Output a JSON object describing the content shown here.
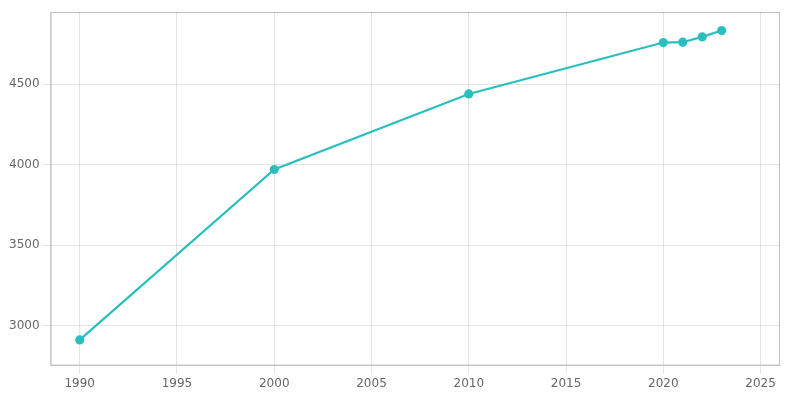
{
  "chart_data": {
    "type": "line",
    "x": [
      1990,
      2000,
      2010,
      2020,
      2021,
      2022,
      2023
    ],
    "values": [
      2910,
      3970,
      4440,
      4760,
      4762,
      4795,
      4835
    ],
    "color": "#2abfbf",
    "marker": "circle",
    "xlim": [
      1988.5,
      2026
    ],
    "ylim": [
      2750,
      4950
    ],
    "xticks": [
      1990,
      1995,
      2000,
      2005,
      2010,
      2015,
      2020,
      2025
    ],
    "yticks": [
      3000,
      3500,
      4000,
      4500
    ],
    "grid": true
  }
}
